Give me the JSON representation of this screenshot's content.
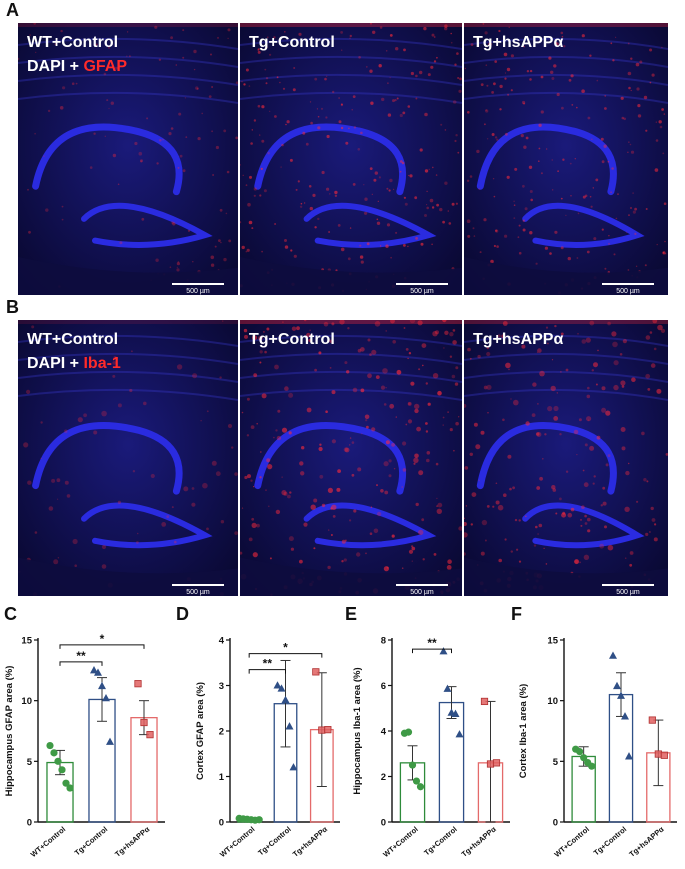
{
  "rows": [
    {
      "letter": "A",
      "panels": [
        {
          "group": "WT+Control",
          "stain_prefix": "DAPI + ",
          "stain_marker": "GFAP",
          "scale_bar": "500 µm",
          "glow": 0.25
        },
        {
          "group": "Tg+Control",
          "stain_prefix": "",
          "stain_marker": "",
          "scale_bar": "500 µm",
          "glow": 0.75
        },
        {
          "group": "Tg+hsAPPα",
          "stain_prefix": "",
          "stain_marker": "",
          "scale_bar": "500 µm",
          "glow": 0.65
        }
      ]
    },
    {
      "letter": "B",
      "panels": [
        {
          "group": "WT+Control",
          "stain_prefix": "DAPI + ",
          "stain_marker": "Iba-1",
          "scale_bar": "500 µm",
          "glow": 0.1
        },
        {
          "group": "Tg+Control",
          "stain_prefix": "",
          "stain_marker": "",
          "scale_bar": "500 µm",
          "glow": 0.8
        },
        {
          "group": "Tg+hsAPPα",
          "stain_prefix": "",
          "stain_marker": "",
          "scale_bar": "500 µm",
          "glow": 0.6
        }
      ]
    }
  ],
  "colors": {
    "dapi": "#2a2be0",
    "stain": "#ff2a3a",
    "wt": "#2e8b3a",
    "tg": "#2f4f86",
    "hs": "#e46a6a",
    "wt_marker": "#3f9a46",
    "tg_marker": "#2f4f86",
    "hs_marker": "#e06060"
  },
  "chart_data": [
    {
      "letter": "C",
      "type": "bar",
      "ylabel": "Hippocampus GFAP area (%)",
      "ylim": [
        0,
        15
      ],
      "yticks": [
        0,
        5,
        10,
        15
      ],
      "categories": [
        "WT+Control",
        "Tg+Control",
        "Tg+hsAPPα"
      ],
      "means": [
        4.9,
        10.1,
        8.6
      ],
      "errors": [
        1.0,
        1.8,
        1.4
      ],
      "points": [
        [
          6.3,
          5.7,
          5.0,
          4.3,
          3.2,
          2.8
        ],
        [
          12.5,
          12.3,
          11.2,
          10.2,
          6.6
        ],
        [
          11.4,
          8.2,
          7.2
        ]
      ],
      "significance": [
        {
          "from": 0,
          "to": 1,
          "label": "**",
          "y": 13.2
        },
        {
          "from": 0,
          "to": 2,
          "label": "*",
          "y": 14.6
        }
      ]
    },
    {
      "letter": "D",
      "type": "bar",
      "ylabel": "Cortex GFAP area (%)",
      "ylim": [
        0,
        4
      ],
      "yticks": [
        0,
        1,
        2,
        3,
        4
      ],
      "categories": [
        "WT+Control",
        "Tg+Control",
        "Tg+hsAPPα"
      ],
      "means": [
        0.06,
        2.6,
        2.03
      ],
      "errors": [
        0.03,
        0.95,
        1.25
      ],
      "points": [
        [
          0.08,
          0.07,
          0.06,
          0.05,
          0.04,
          0.05
        ],
        [
          3.0,
          2.93,
          2.68,
          2.1,
          1.2
        ],
        [
          3.3,
          2.02,
          2.03
        ]
      ],
      "significance": [
        {
          "from": 0,
          "to": 1,
          "label": "**",
          "y": 3.35
        },
        {
          "from": 0,
          "to": 2,
          "label": "*",
          "y": 3.7
        }
      ]
    },
    {
      "letter": "E",
      "type": "bar",
      "ylabel": "Hippocampus Iba-1 area (%)",
      "ylim": [
        0,
        8
      ],
      "yticks": [
        0,
        2,
        4,
        6,
        8
      ],
      "categories": [
        "WT+Control",
        "Tg+Control",
        "Tg+hsAPPα"
      ],
      "means": [
        2.6,
        5.25,
        2.6
      ],
      "errors": [
        0.75,
        0.7,
        2.7
      ],
      "points": [
        [
          3.9,
          3.95,
          2.5,
          1.8,
          1.55
        ],
        [
          7.5,
          5.85,
          4.8,
          4.75,
          3.85
        ],
        [
          5.3,
          2.55,
          2.6
        ]
      ],
      "significance": [
        {
          "from": 0,
          "to": 1,
          "label": "**",
          "y": 7.6
        }
      ]
    },
    {
      "letter": "F",
      "type": "bar",
      "ylabel": "Cortex Iba-1 area (%)",
      "ylim": [
        0,
        15
      ],
      "yticks": [
        0,
        5,
        10,
        15
      ],
      "categories": [
        "WT+Control",
        "Tg+Control",
        "Tg+hsAPPα"
      ],
      "means": [
        5.4,
        10.5,
        5.7
      ],
      "errors": [
        0.8,
        1.8,
        2.7
      ],
      "points": [
        [
          6.0,
          5.8,
          5.3,
          4.9,
          4.6
        ],
        [
          13.7,
          11.2,
          10.4,
          8.7,
          5.4
        ],
        [
          8.4,
          5.6,
          5.5
        ]
      ],
      "significance": []
    }
  ]
}
